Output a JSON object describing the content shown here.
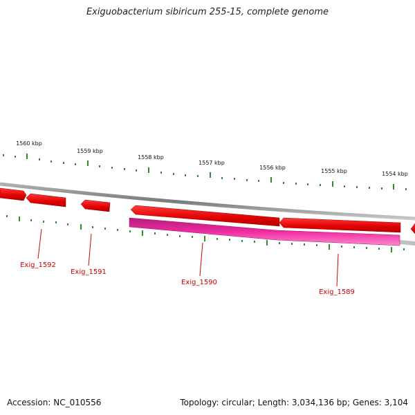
{
  "title": "Exiguobacterium sibiricum 255-15, complete genome",
  "footer": {
    "accession": "Accession: NC_010556",
    "summary": "Topology: circular; Length: 3,034,136 bp; Genes: 3,104"
  },
  "colors": {
    "gene_forward": "#ee0000",
    "gene_reverse": "#ee0000",
    "cds_pink": "#e8179a",
    "backbone": "#8a8a8a",
    "ticks": "#2e8b2e",
    "gene_label": "#cc0000"
  },
  "ticks": {
    "labels": [
      "1560 kbp",
      "1559 kbp",
      "1558 kbp",
      "1557 kbp",
      "1556 kbp",
      "1555 kbp",
      "1554 kbp"
    ]
  },
  "genes": [
    {
      "label": "Exig_1592"
    },
    {
      "label": "Exig_1591"
    },
    {
      "label": "Exig_1590"
    },
    {
      "label": "Exig_1589"
    }
  ]
}
